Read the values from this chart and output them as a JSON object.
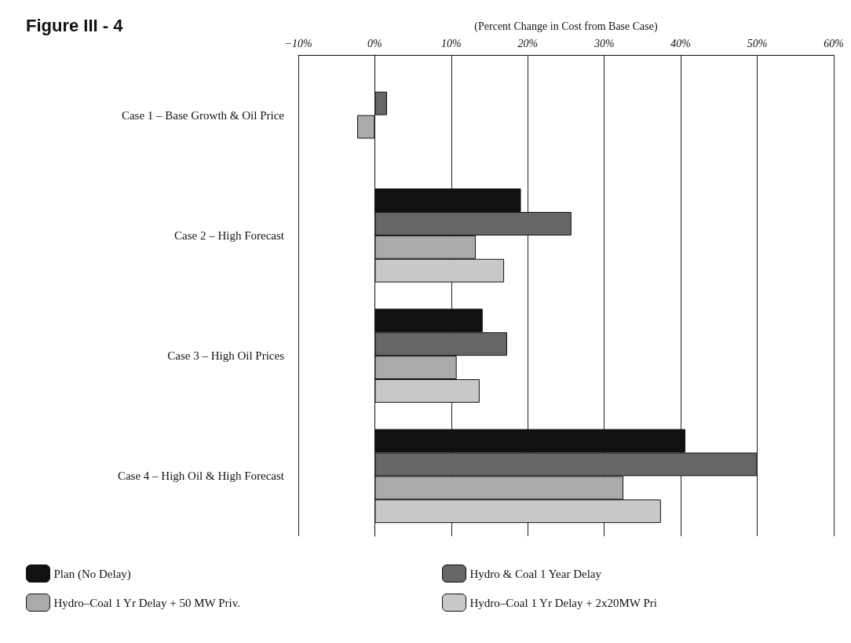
{
  "chart_data": {
    "type": "bar",
    "orientation": "horizontal",
    "title": "Figure III - 4",
    "xlabel": "(Percent Change in Cost from Base Case)",
    "categories": [
      "Case 1 – Base Growth & Oil Price",
      "Case 2 – High Forecast",
      "Case 3 – High Oil Prices",
      "Case 4 – High Oil & High Forecast"
    ],
    "series": [
      {
        "name": "Plan (No Delay)",
        "color": "#111111",
        "values": [
          null,
          19.1,
          14.1,
          40.6
        ]
      },
      {
        "name": "Hydro & Coal 1 Year Delay",
        "color": "#666666",
        "values": [
          1.6,
          25.7,
          17.3,
          50.0
        ]
      },
      {
        "name": "Hydro–Coal 1 Yr Delay + 50 MW Priv.",
        "color": "#aaaaaa",
        "values": [
          -2.3,
          13.2,
          10.7,
          32.5
        ]
      },
      {
        "name": "Hydro–Coal 1 Yr Delay + 2x20MW Pri",
        "color": "#c8c8c8",
        "values": [
          null,
          16.9,
          13.7,
          37.4
        ]
      }
    ],
    "xlim": [
      -10,
      60
    ],
    "xticks": [
      {
        "value": -10,
        "label": "−10%"
      },
      {
        "value": 0,
        "label": "0%"
      },
      {
        "value": 10,
        "label": "10%"
      },
      {
        "value": 20,
        "label": "20%"
      },
      {
        "value": 30,
        "label": "30%"
      },
      {
        "value": 40,
        "label": "40%"
      },
      {
        "value": 50,
        "label": "50%"
      },
      {
        "value": 60,
        "label": "60%"
      }
    ],
    "grid": "x",
    "legend": "bottom"
  }
}
